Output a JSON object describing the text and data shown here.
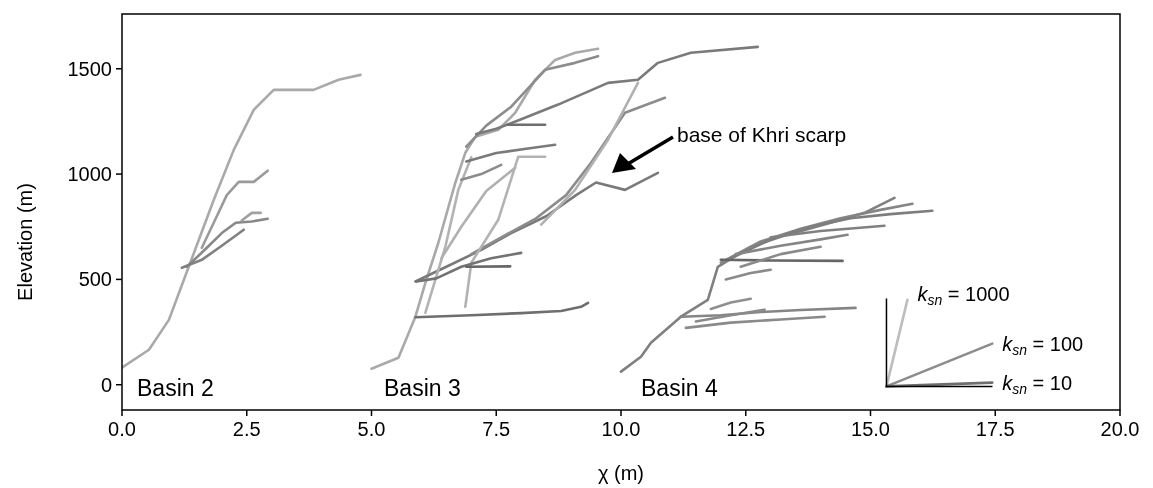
{
  "chart_data": {
    "type": "line",
    "xlabel": "χ (m)",
    "ylabel": "Elevation (m)",
    "xlim": [
      0,
      20
    ],
    "ylim": [
      -120,
      1760
    ],
    "xticks": [
      {
        "value": 0,
        "label": "0.0"
      },
      2.5,
      {
        "value": 5,
        "label": "5.0"
      },
      7.5,
      {
        "value": 10,
        "label": "10.0"
      },
      12.5,
      {
        "value": 15,
        "label": "15.0"
      },
      17.5,
      {
        "value": 20,
        "label": "20.0"
      }
    ],
    "yticks": [
      0,
      500,
      1000,
      1500
    ],
    "grid": false,
    "marker": "none",
    "line_style": "solid",
    "series": [
      {
        "color": "#a9a9a9",
        "x": [
          0,
          0.54,
          0.94,
          1.24,
          1.54,
          1.84,
          2.24,
          2.64,
          3.04,
          3.84,
          4.34,
          4.78
        ],
        "values": [
          81,
          166,
          308,
          498,
          688,
          878,
          1115,
          1305,
          1400,
          1400,
          1448,
          1471
        ]
      },
      {
        "color": "#9a9a9a",
        "x": [
          1.6,
          1.9,
          2.1,
          2.34,
          2.64,
          2.92
        ],
        "values": [
          650,
          800,
          900,
          963,
          963,
          1016
        ]
      },
      {
        "color": "#888888",
        "x": [
          1.3,
          1.7,
          2.0,
          2.28,
          2.6,
          2.92
        ],
        "values": [
          560,
          650,
          720,
          769,
          775,
          788
        ]
      },
      {
        "color": "#a0a0a0",
        "x": [
          2.4,
          2.6,
          2.78
        ],
        "values": [
          780,
          816,
          816
        ]
      },
      {
        "color": "#808080",
        "x": [
          1.2,
          1.6,
          2.0,
          2.44
        ],
        "values": [
          555,
          593,
          660,
          736
        ]
      },
      {
        "color": "#a9a9a9",
        "x": [
          5.0,
          5.54,
          5.88,
          6.08,
          6.34,
          6.68,
          6.88,
          7.08,
          7.54,
          7.88,
          8.28,
          8.68,
          9.08,
          9.54
        ],
        "values": [
          76,
          128,
          323,
          484,
          674,
          959,
          1101,
          1177,
          1210,
          1291,
          1448,
          1542,
          1576,
          1595
        ]
      },
      {
        "color": "#8c8c8c",
        "x": [
          6.9,
          7.3,
          7.8,
          8.48,
          9.08,
          9.54
        ],
        "values": [
          1130,
          1230,
          1320,
          1495,
          1528,
          1560
        ]
      },
      {
        "color": "#7a7a7a",
        "x": [
          7.1,
          7.5,
          8.0,
          8.74,
          9.74,
          10.34,
          10.74,
          11.4,
          12.74
        ],
        "values": [
          1190,
          1215,
          1260,
          1330,
          1433,
          1448,
          1528,
          1576,
          1604
        ]
      },
      {
        "color": "#7a7a7a",
        "x": [
          5.88,
          6.5,
          7.2,
          7.8,
          8.5,
          9.1,
          9.5,
          10.08,
          10.74
        ],
        "values": [
          490,
          560,
          640,
          720,
          800,
          900,
          960,
          925,
          1006
        ]
      },
      {
        "color": "#8c8c8c",
        "x": [
          7.0,
          7.6,
          8.3,
          8.9,
          9.4,
          10.08,
          10.88
        ],
        "values": [
          620,
          700,
          790,
          900,
          1054,
          1291,
          1362
        ]
      },
      {
        "color": "#b0b0b0",
        "x": [
          8.4,
          9.08,
          9.74,
          10.34
        ],
        "values": [
          760,
          925,
          1163,
          1433
        ]
      },
      {
        "color": "#b3b3b3",
        "x": [
          6.88,
          7.0,
          7.54,
          7.94,
          8.48
        ],
        "values": [
          370,
          579,
          783,
          1082,
          1082
        ]
      },
      {
        "color": "#b3b3b3",
        "x": [
          6.08,
          6.48,
          6.74,
          7.0
        ],
        "values": [
          342,
          655,
          925,
          1080
        ]
      },
      {
        "color": "#6e6e6e",
        "x": [
          5.88,
          7.0,
          8.0,
          8.8,
          9.2,
          9.34
        ],
        "values": [
          320,
          330,
          340,
          350,
          370,
          389
        ]
      },
      {
        "color": "#737373",
        "x": [
          5.9,
          6.3,
          6.8,
          7.4,
          8.0
        ],
        "values": [
          490,
          505,
          560,
          600,
          626
        ]
      },
      {
        "color": "#666666",
        "x": [
          6.9,
          7.78
        ],
        "values": [
          560,
          562
        ]
      },
      {
        "color": "#7a7a7a",
        "x": [
          6.9,
          7.5,
          8.1,
          8.68
        ],
        "values": [
          1060,
          1100,
          1120,
          1139
        ]
      },
      {
        "color": "#8c8c8c",
        "x": [
          6.8,
          7.2,
          7.6
        ],
        "values": [
          973,
          1000,
          1044
        ]
      },
      {
        "color": "#b0b0b0",
        "x": [
          6.4,
          6.8,
          7.3,
          7.88
        ],
        "values": [
          600,
          750,
          920,
          1030
        ]
      },
      {
        "color": "#6e6e6e",
        "x": [
          7.74,
          8.48
        ],
        "values": [
          1234,
          1234
        ]
      },
      {
        "color": "#808080",
        "x": [
          10.0,
          10.4,
          10.6,
          11.2,
          11.74,
          11.94,
          12.6,
          13.2,
          14.2,
          14.88,
          15.48
        ],
        "values": [
          62,
          133,
          199,
          323,
          403,
          560,
          655,
          702,
          769,
          816,
          887
        ]
      },
      {
        "color": "#858585",
        "x": [
          12.0,
          12.8,
          13.6,
          14.4,
          15.2,
          15.84
        ],
        "values": [
          580,
          680,
          740,
          790,
          830,
          859
        ]
      },
      {
        "color": "#7d7d7d",
        "x": [
          12.2,
          13.0,
          13.8,
          14.6,
          15.4,
          16.24
        ],
        "values": [
          600,
          690,
          750,
          790,
          810,
          826
        ]
      },
      {
        "color": "#858585",
        "x": [
          11.2,
          12.0,
          12.8,
          13.6,
          14.7
        ],
        "values": [
          323,
          330,
          345,
          355,
          365
        ]
      },
      {
        "color": "#8a8a8a",
        "x": [
          11.3,
          12.2,
          13.2,
          14.08
        ],
        "values": [
          270,
          295,
          310,
          323
        ]
      },
      {
        "color": "#8a8a8a",
        "x": [
          11.5,
          12.2,
          12.88
        ],
        "values": [
          300,
          330,
          356
        ]
      },
      {
        "color": "#8f8f8f",
        "x": [
          11.8,
          12.2,
          12.6
        ],
        "values": [
          360,
          390,
          408
        ]
      },
      {
        "color": "#666666",
        "x": [
          12.0,
          13.0,
          14.44
        ],
        "values": [
          593,
          590,
          588
        ]
      },
      {
        "color": "#858585",
        "x": [
          12.3,
          13.2,
          14.0,
          14.54
        ],
        "values": [
          620,
          660,
          690,
          712
        ]
      },
      {
        "color": "#8a8a8a",
        "x": [
          12.1,
          12.6,
          13.0
        ],
        "values": [
          500,
          530,
          546
        ]
      },
      {
        "color": "#8a8a8a",
        "x": [
          12.4,
          13.2,
          14.0
        ],
        "values": [
          560,
          620,
          655
        ]
      },
      {
        "color": "#808080",
        "x": [
          13.0,
          14.0,
          15.28
        ],
        "values": [
          700,
          730,
          755
        ]
      },
      {
        "name": "k$_{sn}$ = 1000",
        "color": "#bdbdbd",
        "x": [
          15.32,
          15.74
        ],
        "values": [
          -8,
          403
        ]
      },
      {
        "name": "k$_{sn}$ = 100",
        "color": "#8c8c8c",
        "x": [
          15.32,
          17.44
        ],
        "values": [
          -8,
          195
        ]
      },
      {
        "name": "k$_{sn}$ = 10",
        "color": "#6e6e6e",
        "x": [
          15.32,
          17.44
        ],
        "values": [
          -8,
          10
        ]
      }
    ],
    "annotations": [
      "Basin 2",
      "Basin 3",
      "Basin 4",
      "base of Khri scarp"
    ]
  }
}
